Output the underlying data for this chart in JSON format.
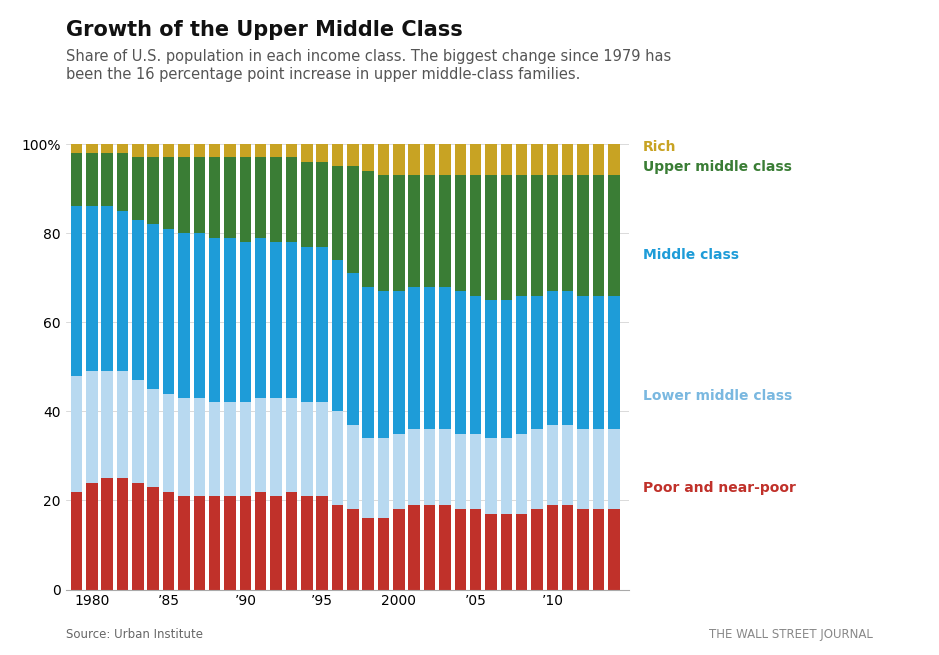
{
  "title": "Growth of the Upper Middle Class",
  "subtitle": "Share of U.S. population in each income class. The biggest change since 1979 has\nbeen the 16 percentage point increase in upper middle-class families.",
  "source": "Source: Urban Institute",
  "credit": "THE WALL STREET JOURNAL",
  "years": [
    1979,
    1980,
    1981,
    1982,
    1983,
    1984,
    1985,
    1986,
    1987,
    1988,
    1989,
    1990,
    1991,
    1992,
    1993,
    1994,
    1995,
    1996,
    1997,
    1998,
    1999,
    2000,
    2001,
    2002,
    2003,
    2004,
    2005,
    2006,
    2007,
    2008,
    2009,
    2010,
    2011,
    2012,
    2013,
    2014
  ],
  "poor_and_near_poor": [
    22,
    24,
    25,
    25,
    24,
    23,
    22,
    21,
    21,
    21,
    21,
    21,
    22,
    21,
    22,
    21,
    21,
    19,
    18,
    16,
    16,
    18,
    19,
    19,
    19,
    18,
    18,
    17,
    17,
    17,
    18,
    19,
    19,
    18,
    18,
    18
  ],
  "lower_middle_class": [
    26,
    25,
    24,
    24,
    23,
    22,
    22,
    22,
    22,
    21,
    21,
    21,
    21,
    22,
    21,
    21,
    21,
    21,
    19,
    18,
    18,
    17,
    17,
    17,
    17,
    17,
    17,
    17,
    17,
    18,
    18,
    18,
    18,
    18,
    18,
    18
  ],
  "middle_class": [
    38,
    37,
    37,
    36,
    36,
    37,
    37,
    37,
    37,
    37,
    37,
    36,
    36,
    35,
    35,
    35,
    35,
    34,
    34,
    34,
    33,
    32,
    32,
    32,
    32,
    32,
    31,
    31,
    31,
    31,
    30,
    30,
    30,
    30,
    30,
    30
  ],
  "upper_middle_class": [
    12,
    12,
    12,
    13,
    14,
    15,
    16,
    17,
    17,
    18,
    18,
    19,
    18,
    19,
    19,
    19,
    19,
    21,
    24,
    26,
    26,
    26,
    25,
    25,
    25,
    26,
    27,
    28,
    28,
    27,
    27,
    26,
    26,
    27,
    27,
    27
  ],
  "rich": [
    2,
    2,
    2,
    2,
    3,
    3,
    3,
    3,
    3,
    3,
    3,
    3,
    3,
    3,
    3,
    4,
    4,
    5,
    5,
    6,
    7,
    7,
    7,
    7,
    7,
    7,
    7,
    7,
    7,
    7,
    7,
    7,
    7,
    7,
    7,
    7
  ],
  "colors": {
    "poor_and_near_poor": "#c0312a",
    "lower_middle_class": "#b8d9f0",
    "middle_class": "#1e9cd8",
    "upper_middle_class": "#3a7d35",
    "rich": "#c8a323"
  },
  "labels": {
    "poor_and_near_poor": "Poor and near-poor",
    "lower_middle_class": "Lower middle class",
    "middle_class": "Middle class",
    "upper_middle_class": "Upper middle class",
    "rich": "Rich"
  },
  "label_colors": {
    "poor_and_near_poor": "#c0312a",
    "lower_middle_class": "#7ab8e0",
    "middle_class": "#1e9cd8",
    "upper_middle_class": "#3a7d35",
    "rich": "#c8a323"
  },
  "xlabel_ticks": [
    1980,
    1985,
    1990,
    1995,
    2000,
    2005,
    2010
  ],
  "xlabel_labels": [
    "1980",
    "’85",
    "’90",
    "’95",
    "2000",
    "’05",
    "’10"
  ],
  "ylim": [
    0,
    100
  ],
  "yticks": [
    0,
    20,
    40,
    60,
    80,
    100
  ],
  "background_color": "#ffffff"
}
